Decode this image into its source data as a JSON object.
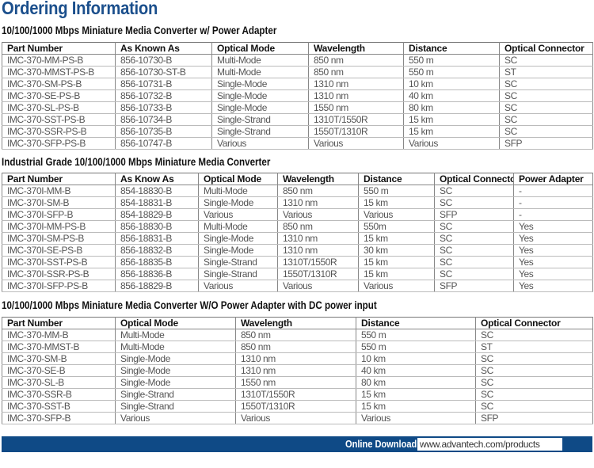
{
  "page_title": "Ordering Information",
  "tables": [
    {
      "heading": "10/100/1000 Mbps Miniature Media Converter w/ Power Adapter",
      "columns": [
        "Part Number",
        "As Known As",
        "Optical Mode",
        "Wavelength",
        "Distance",
        "Optical Connector"
      ],
      "rows": [
        [
          "IMC-370-MM-PS-B",
          "856-10730-B",
          "Multi-Mode",
          "850 nm",
          "550 m",
          "SC"
        ],
        [
          "IMC-370-MMST-PS-B",
          "856-10730-ST-B",
          "Multi-Mode",
          "850 nm",
          "550 m",
          "ST"
        ],
        [
          "IMC-370-SM-PS-B",
          "856-10731-B",
          "Single-Mode",
          "1310 nm",
          "10 km",
          "SC"
        ],
        [
          "IMC-370-SE-PS-B",
          "856-10732-B",
          "Single-Mode",
          "1310 nm",
          "40 km",
          "SC"
        ],
        [
          "IMC-370-SL-PS-B",
          "856-10733-B",
          "Single-Mode",
          "1550 nm",
          "80 km",
          "SC"
        ],
        [
          "IMC-370-SST-PS-B",
          "856-10734-B",
          "Single-Strand",
          "1310T/1550R",
          "15 km",
          "SC"
        ],
        [
          "IMC-370-SSR-PS-B",
          "856-10735-B",
          "Single-Strand",
          "1550T/1310R",
          "15 km",
          "SC"
        ],
        [
          "IMC-370-SFP-PS-B",
          "856-10747-B",
          "Various",
          "Various",
          "Various",
          "SFP"
        ]
      ]
    },
    {
      "heading": "Industrial Grade 10/100/1000 Mbps Miniature Media Converter",
      "columns": [
        "Part Number",
        "As Know As",
        "Optical Mode",
        "Wavelength",
        "Distance",
        "Optical Connector",
        "Power Adapter"
      ],
      "rows": [
        [
          "IMC-370I-MM-B",
          "854-18830-B",
          "Multi-Mode",
          "850 nm",
          "550 m",
          "SC",
          "-"
        ],
        [
          "IMC-370I-SM-B",
          "854-18831-B",
          "Single-Mode",
          "1310 nm",
          "15 km",
          "SC",
          "-"
        ],
        [
          "IMC-370I-SFP-B",
          "854-18829-B",
          "Various",
          "Various",
          "Various",
          "SFP",
          "-"
        ],
        [
          "IMC-370I-MM-PS-B",
          "856-18830-B",
          "Multi-Mode",
          "850 nm",
          "550m",
          "SC",
          "Yes"
        ],
        [
          "IMC-370I-SM-PS-B",
          "856-18831-B",
          "Single-Mode",
          "1310 nm",
          "15 km",
          "SC",
          "Yes"
        ],
        [
          "IMC-370I-SE-PS-B",
          "856-18832-B",
          "Single-Mode",
          "1310 nm",
          "30 km",
          "SC",
          "Yes"
        ],
        [
          "IMC-370I-SST-PS-B",
          "856-18835-B",
          "Single-Strand",
          "1310T/1550R",
          "15 km",
          "SC",
          "Yes"
        ],
        [
          "IMC-370I-SSR-PS-B",
          "856-18836-B",
          "Single-Strand",
          "1550T/1310R",
          "15 km",
          "SC",
          "Yes"
        ],
        [
          "IMC-370I-SFP-PS-B",
          "856-18829-B",
          "Various",
          "Various",
          "Various",
          "SFP",
          "Yes"
        ]
      ]
    },
    {
      "heading": "10/100/1000 Mbps Miniature Media Converter W/O Power Adapter with DC power input",
      "columns": [
        "Part Number",
        "Optical Mode",
        "Wavelength",
        "Distance",
        "Optical Connector"
      ],
      "rows": [
        [
          "IMC-370-MM-B",
          "Multi-Mode",
          "850 nm",
          "550 m",
          "SC"
        ],
        [
          "IMC-370-MMST-B",
          "Multi-Mode",
          "850 nm",
          "550 m",
          "ST"
        ],
        [
          "IMC-370-SM-B",
          "Single-Mode",
          "1310 nm",
          "10 km",
          "SC"
        ],
        [
          "IMC-370-SE-B",
          "Single-Mode",
          "1310 nm",
          "40 km",
          "SC"
        ],
        [
          "IMC-370-SL-B",
          "Single-Mode",
          "1550 nm",
          "80 km",
          "SC"
        ],
        [
          "IMC-370-SSR-B",
          "Single-Strand",
          "1310T/1550R",
          "15 km",
          "SC"
        ],
        [
          "IMC-370-SST-B",
          "Single-Strand",
          "1550T/1310R",
          "15 km",
          "SC"
        ],
        [
          "IMC-370-SFP-B",
          "Various",
          "Various",
          "Various",
          "SFP"
        ]
      ]
    }
  ],
  "footer": {
    "label": "Online Download",
    "url": "www.advantech.com/products"
  },
  "colors": {
    "brand_blue": "#0f4a86",
    "title_blue": "#1b4f8c"
  }
}
